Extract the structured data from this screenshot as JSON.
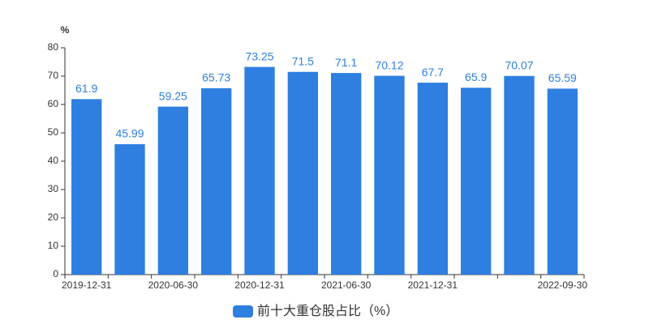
{
  "chart_data": {
    "type": "bar",
    "y_unit": "%",
    "categories": [
      "2019-12-31",
      null,
      "2020-06-30",
      null,
      "2020-12-31",
      null,
      "2021-06-30",
      null,
      "2021-12-31",
      null,
      null,
      "2022-09-30"
    ],
    "series": [
      {
        "name": "前十大重仓股占比（%）",
        "color": "#2e7fdf",
        "values": [
          61.9,
          45.99,
          59.25,
          65.73,
          73.25,
          71.5,
          71.1,
          70.12,
          67.7,
          65.9,
          70.07,
          65.59
        ]
      }
    ],
    "ylim": [
      0,
      80
    ],
    "yticks": [
      0,
      10,
      20,
      30,
      40,
      50,
      60,
      70,
      80
    ],
    "grid": false,
    "legend": "bottom"
  }
}
